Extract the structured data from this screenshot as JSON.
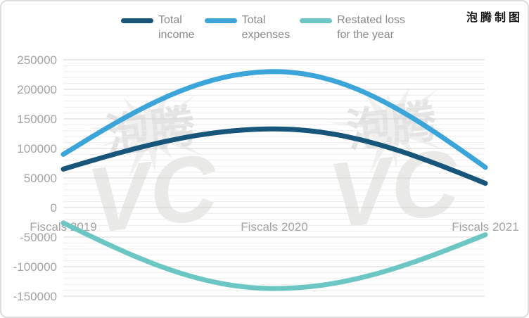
{
  "brand": {
    "label": "泡腾制图"
  },
  "watermark": {
    "stamp_text": "泡腾",
    "stamp_letters": "VC"
  },
  "legend": {
    "items": [
      {
        "name": "Total income",
        "lines": [
          "Total",
          "income"
        ],
        "color": "#17557a"
      },
      {
        "name": "Total expenses",
        "lines": [
          "Total",
          "expenses"
        ],
        "color": "#3ba4d8"
      },
      {
        "name": "Restated loss for the year",
        "lines": [
          "Restated loss",
          "for the year"
        ],
        "color": "#6cc6c3"
      }
    ]
  },
  "axis": {
    "y_tick_labels": [
      "250000",
      "200000",
      "150000",
      "100000",
      "50000",
      "0",
      "-50000",
      "-100000",
      "-150000"
    ]
  },
  "chart_data": {
    "type": "line",
    "smooth": true,
    "title": "",
    "xlabel": "",
    "ylabel": "",
    "categories": [
      "Fiscals 2019",
      "Fiscals 2020",
      "Fiscals 2021"
    ],
    "series": [
      {
        "name": "Total income",
        "color": "#17557a",
        "values": [
          65000,
          133000,
          41000
        ]
      },
      {
        "name": "Total expenses",
        "color": "#3ba4d8",
        "values": [
          90000,
          230000,
          68000
        ]
      },
      {
        "name": "Restated loss for the year",
        "color": "#6cc6c3",
        "values": [
          -26000,
          -137000,
          -46000
        ]
      }
    ],
    "ylim": [
      -150000,
      250000
    ],
    "y_major_step": 50000,
    "y_minor_step": 10000,
    "grid": true,
    "legend_position": "top"
  },
  "colors": {
    "grid_minor": "#eeeceb",
    "grid_major": "#d7d4d2",
    "axis_text": "#a5a3a1",
    "legend_text": "#8a8a8a",
    "watermark_dark": "#e0e0e0",
    "watermark_mid": "#e7e7e6",
    "watermark_light": "#efefed",
    "background": "#ffffff",
    "border": "#dcdcdc",
    "brand_text": "#161616"
  }
}
